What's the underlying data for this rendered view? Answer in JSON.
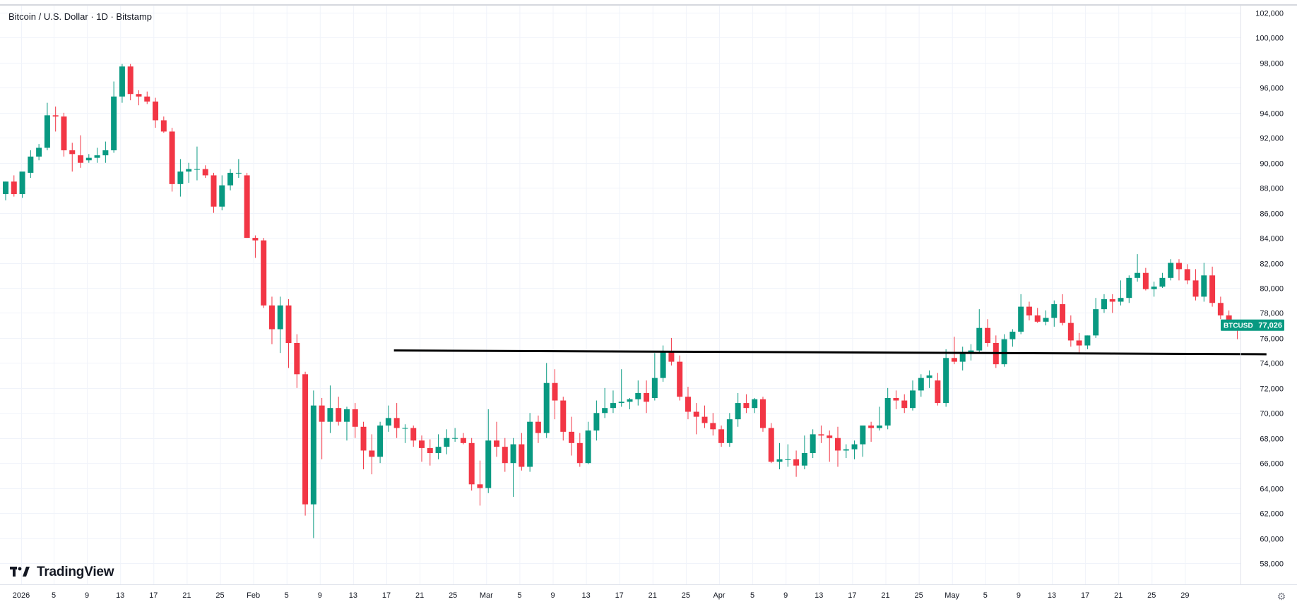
{
  "header": {
    "title": "Bitcoin / U.S. Dollar · 1D · Bitstamp"
  },
  "branding": {
    "logo_text": "TradingView"
  },
  "price_label": {
    "symbol": "BTCUSD",
    "value": "77,026",
    "color": "#089981"
  },
  "colors": {
    "up": "#089981",
    "down": "#f23645",
    "grid": "#f0f3fa",
    "axis_text": "#131722",
    "trendline": "#000000"
  },
  "chart_data": {
    "type": "candlestick",
    "title": "",
    "xlabel": "",
    "ylabel": "",
    "ylim": [
      56700,
      102000
    ],
    "x_ticks": [
      "2026",
      "5",
      "9",
      "13",
      "17",
      "21",
      "25",
      "Feb",
      "5",
      "9",
      "13",
      "17",
      "21",
      "25",
      "Mar",
      "5",
      "9",
      "13",
      "17",
      "21",
      "25",
      "Apr",
      "5",
      "9",
      "13",
      "17",
      "21",
      "25",
      "May",
      "5",
      "9",
      "13",
      "17",
      "21",
      "25",
      "29"
    ],
    "y_ticks": [
      58000,
      60000,
      62000,
      64000,
      66000,
      68000,
      70000,
      72000,
      74000,
      76000,
      78000,
      80000,
      82000,
      84000,
      86000,
      88000,
      90000,
      92000,
      94000,
      96000,
      98000,
      100000,
      102000
    ],
    "y_tick_labels": [
      "58,000",
      "60,000",
      "62,000",
      "64,000",
      "66,000",
      "68,000",
      "70,000",
      "72,000",
      "74,000",
      "76,000",
      "78,000",
      "80,000",
      "82,000",
      "84,000",
      "86,000",
      "88,000",
      "90,000",
      "92,000",
      "94,000",
      "96,000",
      "98,000",
      "100,000",
      "102,000"
    ],
    "candles": [
      {
        "o": 87500,
        "h": 88500,
        "l": 87000,
        "c": 88500
      },
      {
        "o": 88500,
        "h": 89000,
        "l": 87300,
        "c": 87500
      },
      {
        "o": 87500,
        "h": 89000,
        "l": 87200,
        "c": 89300
      },
      {
        "o": 89200,
        "h": 91000,
        "l": 88800,
        "c": 90500
      },
      {
        "o": 90500,
        "h": 91500,
        "l": 90200,
        "c": 91200
      },
      {
        "o": 91200,
        "h": 94800,
        "l": 91000,
        "c": 93800
      },
      {
        "o": 93800,
        "h": 94500,
        "l": 92500,
        "c": 93700
      },
      {
        "o": 93700,
        "h": 94000,
        "l": 90500,
        "c": 91000
      },
      {
        "o": 91000,
        "h": 91600,
        "l": 89300,
        "c": 90700
      },
      {
        "o": 90600,
        "h": 92200,
        "l": 89600,
        "c": 90000
      },
      {
        "o": 90200,
        "h": 90700,
        "l": 90000,
        "c": 90400
      },
      {
        "o": 90400,
        "h": 91200,
        "l": 90000,
        "c": 90600
      },
      {
        "o": 90600,
        "h": 91700,
        "l": 90000,
        "c": 91000
      },
      {
        "o": 91000,
        "h": 96500,
        "l": 90800,
        "c": 95300
      },
      {
        "o": 95300,
        "h": 97900,
        "l": 94800,
        "c": 97700
      },
      {
        "o": 97700,
        "h": 97900,
        "l": 95000,
        "c": 95500
      },
      {
        "o": 95500,
        "h": 95800,
        "l": 94600,
        "c": 95300
      },
      {
        "o": 95300,
        "h": 95700,
        "l": 94700,
        "c": 94900
      },
      {
        "o": 94900,
        "h": 95200,
        "l": 92800,
        "c": 93400
      },
      {
        "o": 93400,
        "h": 93700,
        "l": 92400,
        "c": 92500
      },
      {
        "o": 92500,
        "h": 92800,
        "l": 87700,
        "c": 88300
      },
      {
        "o": 88300,
        "h": 90300,
        "l": 87300,
        "c": 89300
      },
      {
        "o": 89300,
        "h": 90000,
        "l": 88400,
        "c": 89500
      },
      {
        "o": 89500,
        "h": 91300,
        "l": 88600,
        "c": 89500
      },
      {
        "o": 89500,
        "h": 89800,
        "l": 88800,
        "c": 89000
      },
      {
        "o": 89000,
        "h": 89200,
        "l": 86000,
        "c": 86500
      },
      {
        "o": 86500,
        "h": 89000,
        "l": 86200,
        "c": 88200
      },
      {
        "o": 88200,
        "h": 89500,
        "l": 87800,
        "c": 89200
      },
      {
        "o": 89200,
        "h": 90300,
        "l": 88800,
        "c": 89200
      },
      {
        "o": 89000,
        "h": 89200,
        "l": 84000,
        "c": 84000
      },
      {
        "o": 84000,
        "h": 84200,
        "l": 82400,
        "c": 83800
      },
      {
        "o": 83800,
        "h": 84000,
        "l": 78400,
        "c": 78600
      },
      {
        "o": 78600,
        "h": 79300,
        "l": 75500,
        "c": 76700
      },
      {
        "o": 76700,
        "h": 79300,
        "l": 74800,
        "c": 78600
      },
      {
        "o": 78600,
        "h": 79100,
        "l": 73600,
        "c": 75600
      },
      {
        "o": 75600,
        "h": 76300,
        "l": 72000,
        "c": 73100
      },
      {
        "o": 73100,
        "h": 73300,
        "l": 61800,
        "c": 62700
      },
      {
        "o": 62700,
        "h": 71800,
        "l": 60000,
        "c": 70600
      },
      {
        "o": 70600,
        "h": 71200,
        "l": 66300,
        "c": 69300
      },
      {
        "o": 69300,
        "h": 72200,
        "l": 68400,
        "c": 70400
      },
      {
        "o": 70400,
        "h": 71300,
        "l": 69000,
        "c": 69300
      },
      {
        "o": 69300,
        "h": 70500,
        "l": 67800,
        "c": 70300
      },
      {
        "o": 70300,
        "h": 70800,
        "l": 68000,
        "c": 68900
      },
      {
        "o": 68900,
        "h": 69300,
        "l": 65500,
        "c": 67000
      },
      {
        "o": 67000,
        "h": 68300,
        "l": 65100,
        "c": 66500
      },
      {
        "o": 66500,
        "h": 69300,
        "l": 66000,
        "c": 69000
      },
      {
        "o": 69000,
        "h": 70600,
        "l": 68500,
        "c": 69600
      },
      {
        "o": 69600,
        "h": 70800,
        "l": 68000,
        "c": 68800
      },
      {
        "o": 68800,
        "h": 69100,
        "l": 67600,
        "c": 68800
      },
      {
        "o": 68800,
        "h": 69000,
        "l": 67300,
        "c": 67800
      },
      {
        "o": 67800,
        "h": 68200,
        "l": 66100,
        "c": 67200
      },
      {
        "o": 67200,
        "h": 67900,
        "l": 65800,
        "c": 66800
      },
      {
        "o": 66800,
        "h": 68300,
        "l": 66300,
        "c": 67300
      },
      {
        "o": 67300,
        "h": 68700,
        "l": 66700,
        "c": 68000
      },
      {
        "o": 68000,
        "h": 68800,
        "l": 67700,
        "c": 68000
      },
      {
        "o": 68000,
        "h": 68400,
        "l": 67500,
        "c": 67600
      },
      {
        "o": 67600,
        "h": 68000,
        "l": 63800,
        "c": 64300
      },
      {
        "o": 64300,
        "h": 66200,
        "l": 62600,
        "c": 64000
      },
      {
        "o": 64000,
        "h": 70300,
        "l": 63600,
        "c": 67800
      },
      {
        "o": 67800,
        "h": 69300,
        "l": 66500,
        "c": 67300
      },
      {
        "o": 67300,
        "h": 68000,
        "l": 65300,
        "c": 66000
      },
      {
        "o": 66000,
        "h": 68000,
        "l": 63300,
        "c": 67500
      },
      {
        "o": 67500,
        "h": 68400,
        "l": 65400,
        "c": 65700
      },
      {
        "o": 65700,
        "h": 70000,
        "l": 65300,
        "c": 69300
      },
      {
        "o": 69300,
        "h": 69800,
        "l": 67600,
        "c": 68400
      },
      {
        "o": 68400,
        "h": 74000,
        "l": 68000,
        "c": 72400
      },
      {
        "o": 72400,
        "h": 73500,
        "l": 69500,
        "c": 71000
      },
      {
        "o": 71000,
        "h": 71300,
        "l": 67800,
        "c": 68500
      },
      {
        "o": 68500,
        "h": 69700,
        "l": 66600,
        "c": 67600
      },
      {
        "o": 67600,
        "h": 68400,
        "l": 65700,
        "c": 66000
      },
      {
        "o": 66000,
        "h": 69300,
        "l": 65900,
        "c": 68600
      },
      {
        "o": 68600,
        "h": 71000,
        "l": 67800,
        "c": 70000
      },
      {
        "o": 70000,
        "h": 72000,
        "l": 69600,
        "c": 70400
      },
      {
        "o": 70400,
        "h": 71800,
        "l": 70000,
        "c": 70800
      },
      {
        "o": 70800,
        "h": 73500,
        "l": 70500,
        "c": 70900
      },
      {
        "o": 70900,
        "h": 71200,
        "l": 70300,
        "c": 71100
      },
      {
        "o": 71100,
        "h": 72600,
        "l": 70600,
        "c": 71600
      },
      {
        "o": 71600,
        "h": 72600,
        "l": 70000,
        "c": 70900
      },
      {
        "o": 71200,
        "h": 74800,
        "l": 71000,
        "c": 72800
      },
      {
        "o": 72800,
        "h": 75400,
        "l": 72500,
        "c": 74900
      },
      {
        "o": 74900,
        "h": 76000,
        "l": 73800,
        "c": 74100
      },
      {
        "o": 74100,
        "h": 74600,
        "l": 71000,
        "c": 71300
      },
      {
        "o": 71300,
        "h": 72100,
        "l": 69500,
        "c": 70100
      },
      {
        "o": 70100,
        "h": 70800,
        "l": 68300,
        "c": 69700
      },
      {
        "o": 69700,
        "h": 70600,
        "l": 68800,
        "c": 69200
      },
      {
        "o": 69200,
        "h": 70000,
        "l": 68200,
        "c": 68700
      },
      {
        "o": 68700,
        "h": 69000,
        "l": 67300,
        "c": 67600
      },
      {
        "o": 67600,
        "h": 70000,
        "l": 67300,
        "c": 69500
      },
      {
        "o": 69500,
        "h": 71600,
        "l": 68900,
        "c": 70800
      },
      {
        "o": 70800,
        "h": 71500,
        "l": 70000,
        "c": 70400
      },
      {
        "o": 70400,
        "h": 71200,
        "l": 70000,
        "c": 71100
      },
      {
        "o": 71100,
        "h": 71300,
        "l": 68500,
        "c": 68800
      },
      {
        "o": 68800,
        "h": 69200,
        "l": 66000,
        "c": 66100
      },
      {
        "o": 66100,
        "h": 67600,
        "l": 65500,
        "c": 66300
      },
      {
        "o": 66300,
        "h": 67500,
        "l": 65700,
        "c": 66300
      },
      {
        "o": 66300,
        "h": 67000,
        "l": 64900,
        "c": 65800
      },
      {
        "o": 65800,
        "h": 68200,
        "l": 65500,
        "c": 66800
      },
      {
        "o": 66800,
        "h": 68700,
        "l": 66400,
        "c": 68300
      },
      {
        "o": 68300,
        "h": 69000,
        "l": 67600,
        "c": 68200
      },
      {
        "o": 68200,
        "h": 68600,
        "l": 66100,
        "c": 68000
      },
      {
        "o": 68000,
        "h": 68900,
        "l": 65700,
        "c": 67000
      },
      {
        "o": 67000,
        "h": 67500,
        "l": 66400,
        "c": 67100
      },
      {
        "o": 67100,
        "h": 67800,
        "l": 66300,
        "c": 67500
      },
      {
        "o": 67500,
        "h": 69000,
        "l": 66500,
        "c": 69000
      },
      {
        "o": 69000,
        "h": 69300,
        "l": 67700,
        "c": 68800
      },
      {
        "o": 68800,
        "h": 70500,
        "l": 68600,
        "c": 69000
      },
      {
        "o": 69000,
        "h": 72000,
        "l": 68700,
        "c": 71200
      },
      {
        "o": 71200,
        "h": 71800,
        "l": 70300,
        "c": 71000
      },
      {
        "o": 71000,
        "h": 71500,
        "l": 70000,
        "c": 70400
      },
      {
        "o": 70400,
        "h": 72600,
        "l": 70200,
        "c": 71800
      },
      {
        "o": 71800,
        "h": 73100,
        "l": 71300,
        "c": 72800
      },
      {
        "o": 72800,
        "h": 73400,
        "l": 72000,
        "c": 73000
      },
      {
        "o": 72600,
        "h": 73200,
        "l": 70600,
        "c": 70800
      },
      {
        "o": 70800,
        "h": 75100,
        "l": 70500,
        "c": 74400
      },
      {
        "o": 74400,
        "h": 76100,
        "l": 73900,
        "c": 74100
      },
      {
        "o": 74100,
        "h": 75300,
        "l": 73400,
        "c": 74800
      },
      {
        "o": 74800,
        "h": 75500,
        "l": 74200,
        "c": 75000
      },
      {
        "o": 75000,
        "h": 78300,
        "l": 74800,
        "c": 76800
      },
      {
        "o": 76800,
        "h": 77500,
        "l": 75300,
        "c": 75600
      },
      {
        "o": 75600,
        "h": 76200,
        "l": 73600,
        "c": 73900
      },
      {
        "o": 73900,
        "h": 76300,
        "l": 73700,
        "c": 75900
      },
      {
        "o": 75900,
        "h": 76700,
        "l": 75300,
        "c": 76500
      },
      {
        "o": 76500,
        "h": 79500,
        "l": 76300,
        "c": 78500
      },
      {
        "o": 78500,
        "h": 78900,
        "l": 77400,
        "c": 77800
      },
      {
        "o": 77800,
        "h": 78400,
        "l": 77200,
        "c": 77300
      },
      {
        "o": 77300,
        "h": 78200,
        "l": 77000,
        "c": 77600
      },
      {
        "o": 77600,
        "h": 79000,
        "l": 76900,
        "c": 78700
      },
      {
        "o": 78700,
        "h": 79500,
        "l": 77000,
        "c": 77200
      },
      {
        "o": 77200,
        "h": 77800,
        "l": 75300,
        "c": 75800
      },
      {
        "o": 75800,
        "h": 76400,
        "l": 74800,
        "c": 75400
      },
      {
        "o": 75400,
        "h": 76200,
        "l": 75100,
        "c": 76200
      },
      {
        "o": 76200,
        "h": 79200,
        "l": 76000,
        "c": 78300
      },
      {
        "o": 78300,
        "h": 79500,
        "l": 78000,
        "c": 79100
      },
      {
        "o": 79100,
        "h": 79500,
        "l": 78000,
        "c": 78900
      },
      {
        "o": 78900,
        "h": 80600,
        "l": 78600,
        "c": 79200
      },
      {
        "o": 79200,
        "h": 81000,
        "l": 78800,
        "c": 80800
      },
      {
        "o": 80800,
        "h": 82700,
        "l": 80500,
        "c": 81200
      },
      {
        "o": 81200,
        "h": 81600,
        "l": 79800,
        "c": 79900
      },
      {
        "o": 79900,
        "h": 80500,
        "l": 79300,
        "c": 80100
      },
      {
        "o": 80100,
        "h": 81200,
        "l": 80000,
        "c": 80800
      },
      {
        "o": 80800,
        "h": 82300,
        "l": 80600,
        "c": 82000
      },
      {
        "o": 82000,
        "h": 82300,
        "l": 80600,
        "c": 81500
      },
      {
        "o": 81500,
        "h": 81900,
        "l": 80300,
        "c": 80600
      },
      {
        "o": 80600,
        "h": 81500,
        "l": 79000,
        "c": 79300
      },
      {
        "o": 79300,
        "h": 82000,
        "l": 78900,
        "c": 81000
      },
      {
        "o": 81000,
        "h": 81700,
        "l": 78500,
        "c": 78800
      },
      {
        "o": 78800,
        "h": 79300,
        "l": 77500,
        "c": 77800
      },
      {
        "o": 77800,
        "h": 78200,
        "l": 76600,
        "c": 77000
      },
      {
        "o": 77000,
        "h": 77300,
        "l": 75900,
        "c": 76800
      },
      {
        "o": 77000,
        "h": 77200,
        "l": 76800,
        "c": 77026
      }
    ],
    "trendline": {
      "start_index": 47,
      "start_price": 75000,
      "end_index": 151,
      "end_price": 74700
    }
  }
}
